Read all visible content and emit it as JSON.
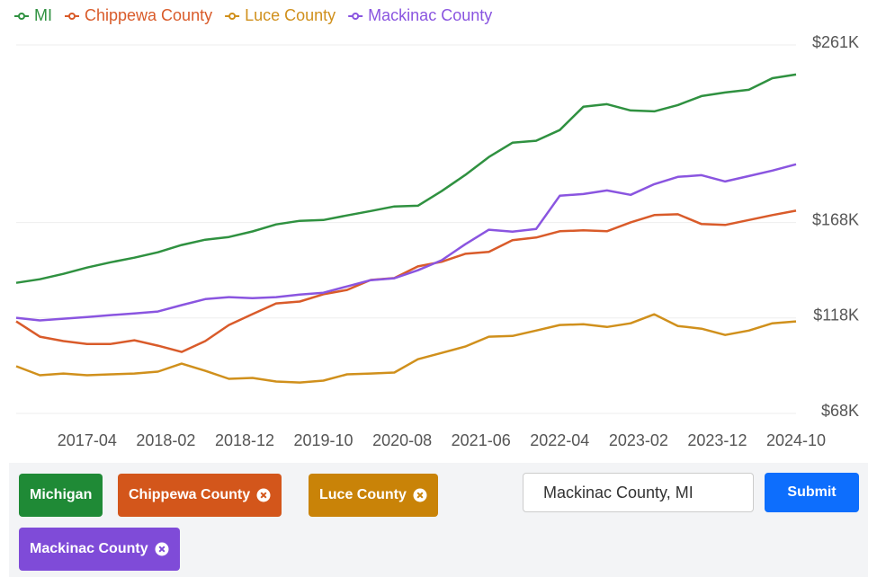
{
  "chart_data": {
    "type": "line",
    "x": [
      "2016-07",
      "2016-10",
      "2017-01",
      "2017-04",
      "2017-07",
      "2017-10",
      "2018-01",
      "2018-04",
      "2018-07",
      "2018-10",
      "2019-01",
      "2019-04",
      "2019-07",
      "2019-10",
      "2020-01",
      "2020-04",
      "2020-07",
      "2020-10",
      "2021-01",
      "2021-04",
      "2021-07",
      "2021-10",
      "2022-01",
      "2022-04",
      "2022-07",
      "2022-10",
      "2023-01",
      "2023-04",
      "2023-07",
      "2023-10",
      "2024-01",
      "2024-04",
      "2024-07",
      "2024-10"
    ],
    "xlim": [
      "2016-07",
      "2024-10"
    ],
    "xticks": [
      "2017-04",
      "2018-02",
      "2018-12",
      "2019-10",
      "2020-08",
      "2021-06",
      "2022-04",
      "2023-02",
      "2023-12",
      "2024-10"
    ],
    "ylim": [
      68000,
      261000
    ],
    "yticks": [
      {
        "value": 68000,
        "label": "$68K"
      },
      {
        "value": 118000,
        "label": "$118K"
      },
      {
        "value": 168000,
        "label": "$168K"
      },
      {
        "value": 261000,
        "label": "$261K"
      }
    ],
    "grid": true,
    "legend": "top",
    "series": [
      {
        "name": "MI",
        "color": "#2f9140",
        "values": [
          136400,
          138300,
          141100,
          144400,
          147200,
          149600,
          152400,
          156200,
          159000,
          160400,
          163300,
          167000,
          168900,
          169300,
          171700,
          174000,
          176400,
          176800,
          184400,
          192900,
          202300,
          209800,
          210800,
          216400,
          228600,
          230000,
          226700,
          226200,
          229500,
          234200,
          236100,
          237500,
          243600,
          245500
        ]
      },
      {
        "name": "Chippewa County",
        "color": "#d95b2a",
        "values": [
          116200,
          108200,
          105900,
          104400,
          104400,
          106300,
          103500,
          100200,
          105900,
          114300,
          120000,
          125600,
          126600,
          130400,
          132700,
          137900,
          138900,
          145000,
          147400,
          151600,
          152600,
          158700,
          160100,
          163400,
          163900,
          163400,
          168100,
          171900,
          172300,
          167200,
          166700,
          169300,
          171900,
          174200
        ]
      },
      {
        "name": "Luce County",
        "color": "#d0901c",
        "values": [
          92700,
          88000,
          88900,
          88000,
          88500,
          88900,
          89900,
          94100,
          90300,
          86100,
          86600,
          84700,
          84200,
          85200,
          88500,
          88900,
          89400,
          96400,
          99700,
          103000,
          108200,
          108600,
          111400,
          114300,
          114700,
          113300,
          115200,
          119900,
          113800,
          112400,
          109100,
          111400,
          115200,
          116200
        ]
      },
      {
        "name": "Mackinac County",
        "color": "#8a55e0",
        "values": [
          118100,
          116700,
          117600,
          118500,
          119500,
          120400,
          121400,
          124700,
          127900,
          128900,
          128400,
          128900,
          130300,
          131200,
          134500,
          137800,
          138800,
          143000,
          148200,
          156600,
          164200,
          163200,
          164600,
          182000,
          182900,
          184800,
          182500,
          188100,
          191900,
          192800,
          189500,
          192300,
          195200,
          198500
        ]
      }
    ]
  },
  "controls": {
    "chips": [
      {
        "label": "Michigan",
        "color": "#1f8a36",
        "removable": false
      },
      {
        "label": "Chippewa County",
        "color": "#d3561b",
        "removable": true
      },
      {
        "label": "Luce County",
        "color": "#c98308",
        "removable": true
      },
      {
        "label": "Mackinac County",
        "color": "#7f4bd8",
        "removable": true
      }
    ],
    "search_value": "Mackinac County, MI",
    "submit": "Submit"
  }
}
